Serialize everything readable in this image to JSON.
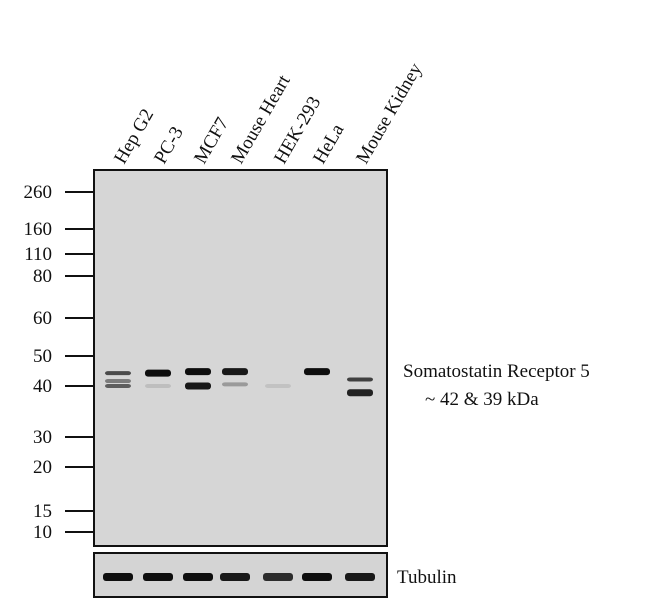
{
  "lanes": [
    "Hep G2",
    "PC-3",
    "MCF7",
    "Mouse Heart",
    "HEK-293",
    "HeLa",
    "Mouse Kidney"
  ],
  "markers_kda": [
    "260",
    "160",
    "110",
    "80",
    "60",
    "50",
    "40",
    "30",
    "20",
    "15",
    "10"
  ],
  "target_label": "Somatostatin Receptor 5",
  "target_size": "~ 42 & 39 kDa",
  "loading_control": "Tubulin",
  "bands": [
    [
      {
        "kda": 44,
        "intensity": 0.7
      },
      {
        "kda": 41.5,
        "intensity": 0.45
      },
      {
        "kda": 40,
        "intensity": 0.6
      }
    ],
    [
      {
        "kda": 44,
        "intensity": 1.0
      },
      {
        "kda": 40,
        "intensity": 0.12
      }
    ],
    [
      {
        "kda": 44.5,
        "intensity": 1.0
      },
      {
        "kda": 40,
        "intensity": 0.95
      }
    ],
    [
      {
        "kda": 44.5,
        "intensity": 0.95
      },
      {
        "kda": 40.5,
        "intensity": 0.3
      }
    ],
    [
      {
        "kda": 40,
        "intensity": 0.1
      }
    ],
    [
      {
        "kda": 44.5,
        "intensity": 1.0
      }
    ],
    [
      {
        "kda": 42,
        "intensity": 0.75
      },
      {
        "kda": 38.5,
        "intensity": 0.9
      }
    ]
  ],
  "tubulin_intensity": [
    1.0,
    1.0,
    1.0,
    0.95,
    0.85,
    1.0,
    0.95
  ]
}
